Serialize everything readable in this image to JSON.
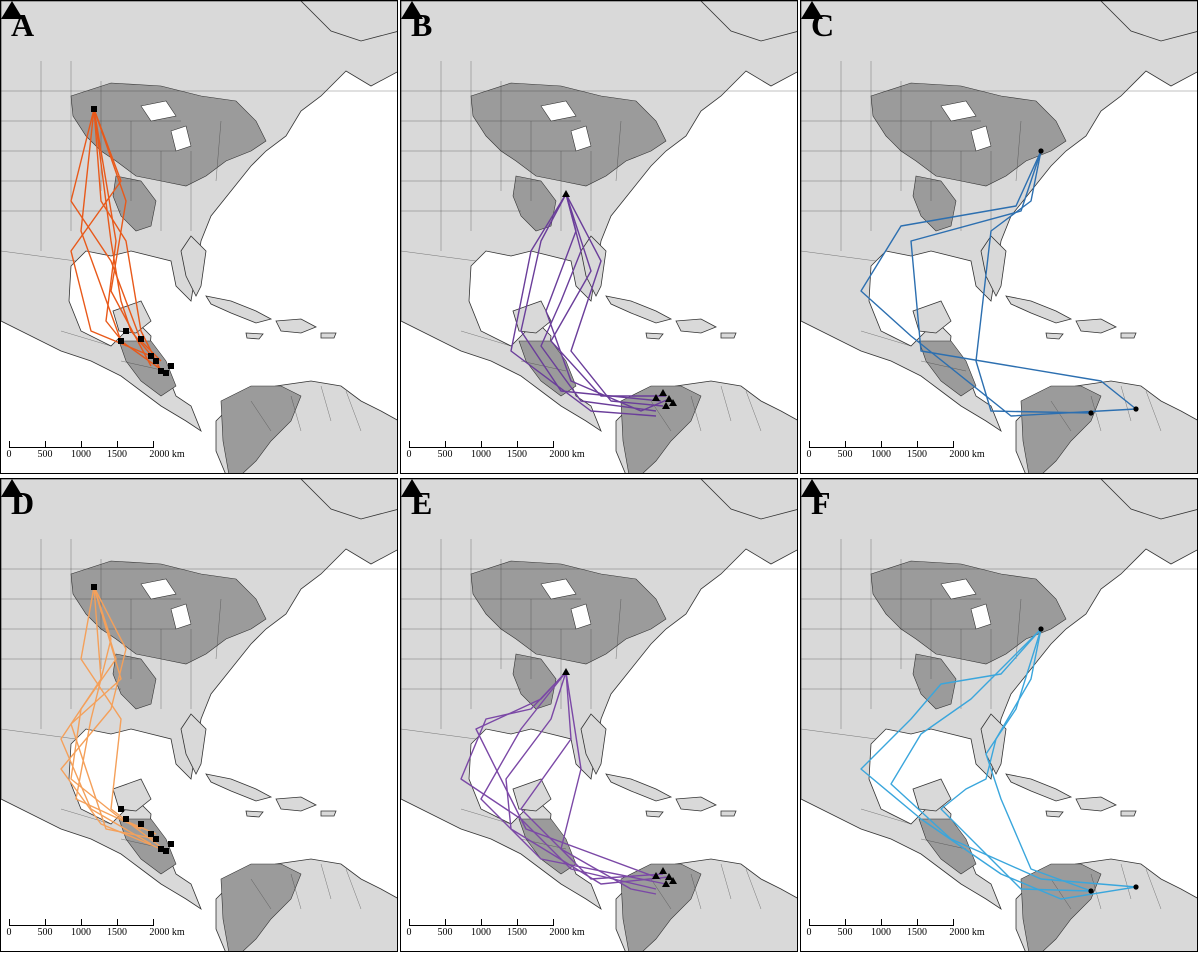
{
  "figure": {
    "panels": [
      {
        "id": "A",
        "label": "A",
        "route_color": "#e8591a",
        "marker": "square"
      },
      {
        "id": "B",
        "label": "B",
        "route_color": "#6a3d9a",
        "marker": "triangle"
      },
      {
        "id": "C",
        "label": "C",
        "route_color": "#2c6fb0",
        "marker": "circle"
      },
      {
        "id": "D",
        "label": "D",
        "route_color": "#f4a05a",
        "marker": "square"
      },
      {
        "id": "E",
        "label": "E",
        "route_color": "#7b48a6",
        "marker": "triangle"
      },
      {
        "id": "F",
        "label": "F",
        "route_color": "#3aa6dc",
        "marker": "circle"
      }
    ],
    "scale": {
      "ticks": [
        "0",
        "500",
        "1000",
        "1500",
        "2000 km"
      ]
    },
    "north_arrow_icon": "north-arrow-triangle-icon",
    "colors": {
      "land": "#d9d9d9",
      "range": "#9b9b9b",
      "water": "#ffffff",
      "border": "#333333"
    }
  }
}
